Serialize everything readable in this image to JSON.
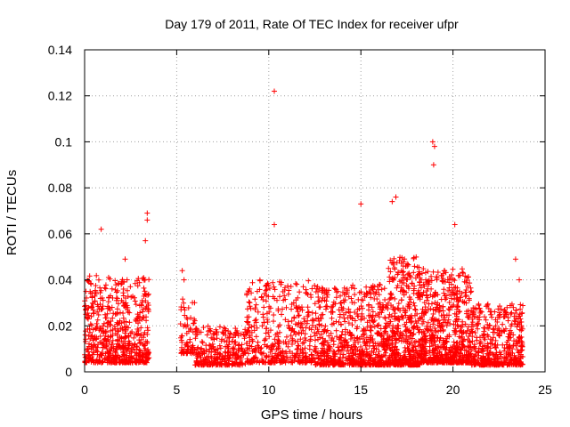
{
  "chart_data": {
    "type": "scatter",
    "title": "Day 179 of 2011, Rate Of TEC Index for receiver ufpr",
    "xlabel": "GPS time / hours",
    "ylabel": "ROTI / TECUs",
    "xlim": [
      0,
      25
    ],
    "ylim": [
      0,
      0.14
    ],
    "xticks": [
      0,
      5,
      10,
      15,
      20,
      25
    ],
    "yticks": [
      0,
      0.02,
      0.04,
      0.06,
      0.08,
      0.1,
      0.12,
      0.14
    ],
    "xtick_labels": [
      "0",
      "5",
      "10",
      "15",
      "20",
      "25"
    ],
    "ytick_labels": [
      "0",
      "0.02",
      "0.04",
      "0.06",
      "0.08",
      "0.1",
      "0.12",
      "0.14"
    ],
    "grid": true,
    "marker": "+",
    "color": "#ff0000",
    "notable_points": [
      {
        "x": 10.3,
        "y": 0.122
      },
      {
        "x": 18.9,
        "y": 0.1
      },
      {
        "x": 19.0,
        "y": 0.098
      },
      {
        "x": 18.95,
        "y": 0.09
      },
      {
        "x": 16.9,
        "y": 0.076
      },
      {
        "x": 16.7,
        "y": 0.074
      },
      {
        "x": 15.0,
        "y": 0.073
      },
      {
        "x": 3.4,
        "y": 0.069
      },
      {
        "x": 3.4,
        "y": 0.066
      },
      {
        "x": 10.3,
        "y": 0.064
      },
      {
        "x": 20.1,
        "y": 0.064
      },
      {
        "x": 0.9,
        "y": 0.062
      },
      {
        "x": 3.3,
        "y": 0.057
      },
      {
        "x": 2.2,
        "y": 0.049
      },
      {
        "x": 5.3,
        "y": 0.044
      },
      {
        "x": 5.4,
        "y": 0.04
      },
      {
        "x": 23.4,
        "y": 0.049
      },
      {
        "x": 23.6,
        "y": 0.04
      }
    ],
    "segments": [
      {
        "x": [
          0.0,
          3.5
        ],
        "ymin": 0.004,
        "ymax": 0.042,
        "count": 620
      },
      {
        "x": [
          5.2,
          6.0
        ],
        "ymin": 0.008,
        "ymax": 0.032,
        "count": 70
      },
      {
        "x": [
          6.0,
          8.8
        ],
        "ymin": 0.003,
        "ymax": 0.02,
        "count": 280
      },
      {
        "x": [
          8.8,
          12.5
        ],
        "ymin": 0.004,
        "ymax": 0.04,
        "count": 430
      },
      {
        "x": [
          12.5,
          16.5
        ],
        "ymin": 0.003,
        "ymax": 0.038,
        "count": 700
      },
      {
        "x": [
          16.5,
          18.2
        ],
        "ymin": 0.003,
        "ymax": 0.05,
        "count": 450
      },
      {
        "x": [
          18.2,
          21.0
        ],
        "ymin": 0.004,
        "ymax": 0.045,
        "count": 650
      },
      {
        "x": [
          21.0,
          23.8
        ],
        "ymin": 0.003,
        "ymax": 0.03,
        "count": 460
      }
    ]
  }
}
